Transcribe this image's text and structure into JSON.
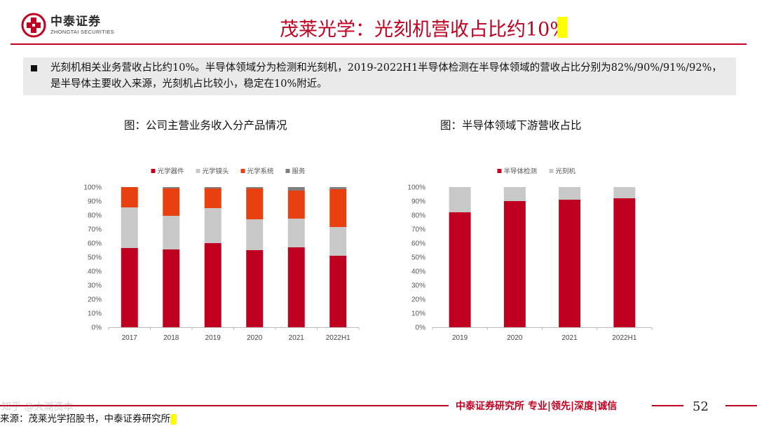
{
  "header": {
    "logo_cn": "中泰证券",
    "logo_en": "ZHONGTAI SECURITIES",
    "title": "茂莱光学：光刻机营收占比约10%"
  },
  "bullet": {
    "text": "光刻机相关业务营收占比约10%。半导体领域分为检测和光刻机，2019-2022H1半导体检测在半导体领域的营收占比分别为82%/90%/91%/92%，是半导体主要收入来源，光刻机占比较小，稳定在10%附近。"
  },
  "chart_data": [
    {
      "type": "bar",
      "stacked": true,
      "title": "图：公司主营业务收入分产品情况",
      "categories": [
        "2017",
        "2018",
        "2019",
        "2020",
        "2021",
        "2022H1"
      ],
      "series": [
        {
          "name": "光学器件",
          "color": "#c00020",
          "values": [
            0.565,
            0.555,
            0.6,
            0.55,
            0.57,
            0.51
          ]
        },
        {
          "name": "光学镜头",
          "color": "#c8c8c8",
          "values": [
            0.29,
            0.24,
            0.25,
            0.22,
            0.205,
            0.205
          ]
        },
        {
          "name": "光学系统",
          "color": "#e8400e",
          "values": [
            0.145,
            0.195,
            0.14,
            0.22,
            0.2,
            0.27
          ]
        },
        {
          "name": "服务",
          "color": "#808080",
          "values": [
            0.0,
            0.01,
            0.01,
            0.01,
            0.025,
            0.015
          ]
        }
      ],
      "ylim": [
        0,
        1
      ],
      "yticks": [
        "0%",
        "10%",
        "20%",
        "30%",
        "40%",
        "50%",
        "60%",
        "70%",
        "80%",
        "90%",
        "100%"
      ],
      "legend_position": "top"
    },
    {
      "type": "bar",
      "stacked": true,
      "title": "图：半导体领域下游营收占比",
      "categories": [
        "2019",
        "2020",
        "2021",
        "2022H1"
      ],
      "series": [
        {
          "name": "半导体检测",
          "color": "#c00020",
          "values": [
            0.82,
            0.9,
            0.91,
            0.92
          ]
        },
        {
          "name": "光刻机",
          "color": "#c8c8c8",
          "values": [
            0.18,
            0.1,
            0.09,
            0.08
          ]
        }
      ],
      "ylim": [
        0,
        1
      ],
      "yticks": [
        "0%",
        "10%",
        "20%",
        "30%",
        "40%",
        "50%",
        "60%",
        "70%",
        "80%",
        "90%",
        "100%"
      ],
      "legend_position": "top"
    }
  ],
  "footer": {
    "brand": "中泰证券研究所 专业|领先|深度|诚信",
    "page_number": "52",
    "source": "来源：茂莱光学招股书，中泰证券研究所",
    "watermark": "知乎 @大湖资本"
  }
}
